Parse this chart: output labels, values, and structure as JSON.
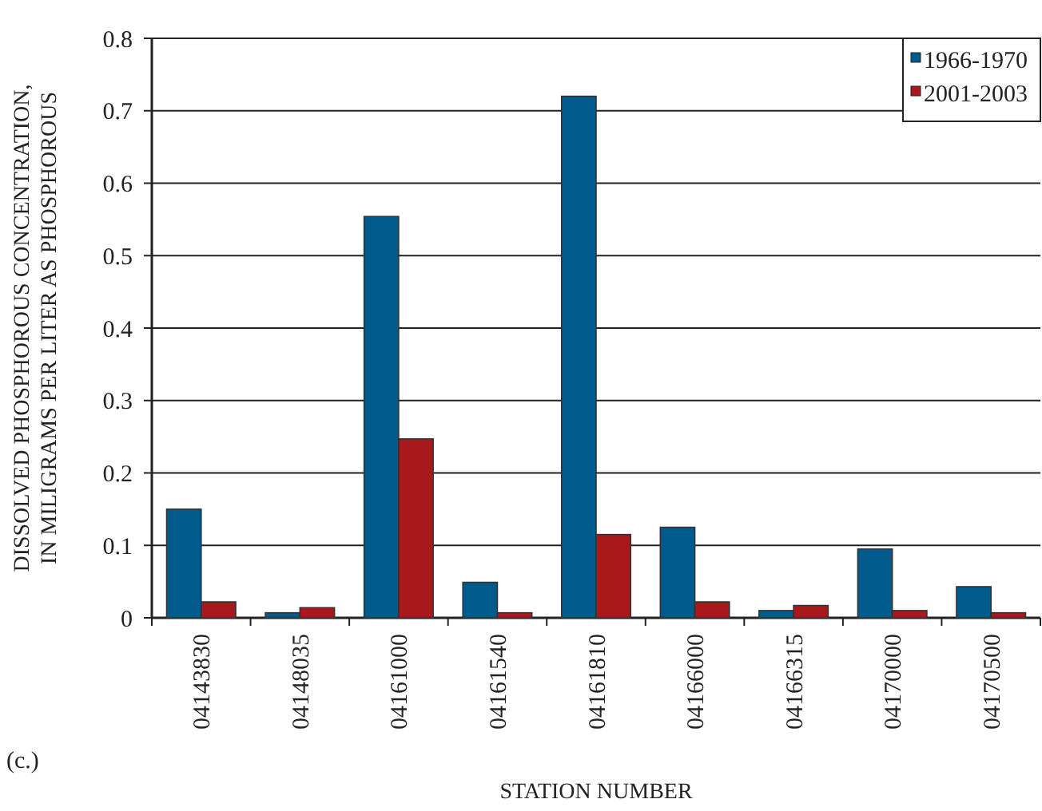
{
  "chart_data": {
    "type": "bar",
    "xlabel": "STATION NUMBER",
    "ylabel": "DISSOLVED PHOSPHOROUS CONCENTRATION, IN MILIGRAMS PER LITER AS PHOSPHOROUS",
    "annotations": [
      "(c.)"
    ],
    "categories": [
      "04143830",
      "04148035",
      "04161000",
      "04161540",
      "04161810",
      "04166000",
      "04166315",
      "04170000",
      "04170500"
    ],
    "series": [
      {
        "name": "1966-1970",
        "color": "#005a8c",
        "values": [
          0.15,
          0.007,
          0.554,
          0.049,
          0.72,
          0.125,
          0.01,
          0.095,
          0.043
        ]
      },
      {
        "name": "2001-2003",
        "color": "#a8191e",
        "values": [
          0.022,
          0.014,
          0.247,
          0.007,
          0.115,
          0.022,
          0.017,
          0.01,
          0.007
        ]
      }
    ],
    "ylim": [
      0,
      0.8
    ],
    "yticks": [
      0,
      0.1,
      0.2,
      0.3,
      0.4,
      0.5,
      0.6,
      0.7,
      0.8
    ],
    "grid": "y",
    "legend": "top right"
  }
}
